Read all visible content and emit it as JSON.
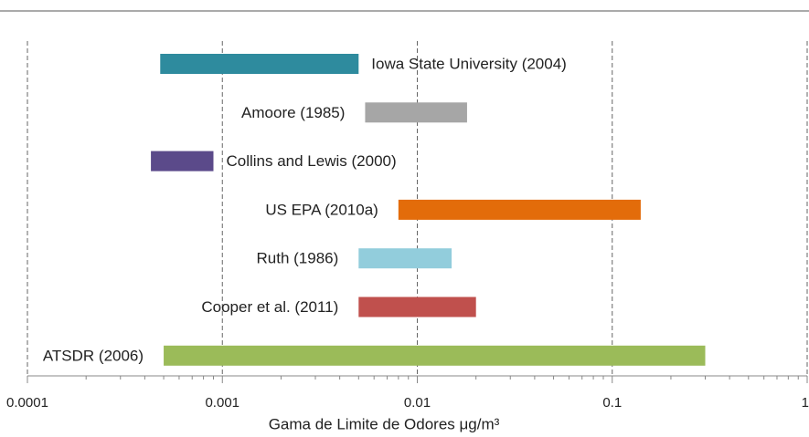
{
  "chart_data": {
    "type": "floating-bar",
    "xlabel": "Gama de Limite de Odores μg/m³",
    "categories": [
      "Iowa State University (2004)",
      "Amoore (1985)",
      "Collins and Lewis (2000)",
      "US EPA (2010a)",
      "Ruth (1986)",
      "Cooper et al. (2011)",
      "ATSDR (2006)"
    ],
    "low": [
      0.00048,
      0.0054,
      0.00043,
      0.008,
      0.005,
      0.005,
      0.0005
    ],
    "high": [
      0.005,
      0.018,
      0.0009,
      0.14,
      0.015,
      0.02,
      0.3
    ],
    "colors": [
      "#2e8b9e",
      "#a6a6a6",
      "#5b4a8a",
      "#e36c0a",
      "#92cddc",
      "#c0504d",
      "#9bbb59"
    ],
    "xscale": "log",
    "xlim": [
      0.0001,
      1
    ],
    "xticks": [
      0.0001,
      0.001,
      0.01,
      0.1,
      1
    ],
    "grid": true
  }
}
